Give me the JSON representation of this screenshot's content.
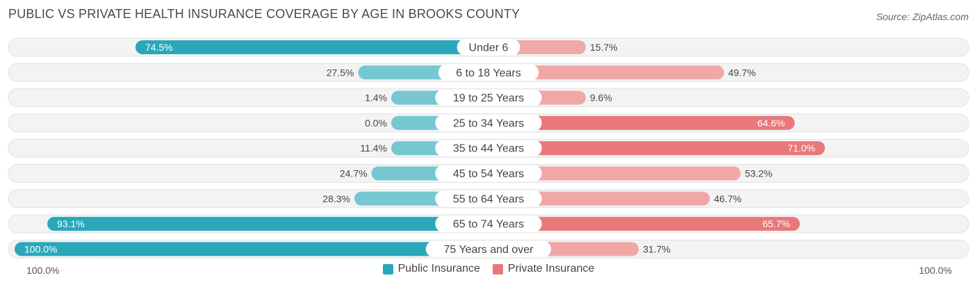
{
  "header": {
    "title": "PUBLIC VS PRIVATE HEALTH INSURANCE COVERAGE BY AGE IN BROOKS COUNTY",
    "source": "Source: ZipAtlas.com"
  },
  "axis": {
    "left_label": "100.0%",
    "right_label": "100.0%"
  },
  "colors": {
    "public_dark": "#2aa8ba",
    "public_light": "#76c7d2",
    "private_dark": "#e8787a",
    "private_light": "#f0a8a7",
    "track": "#f1f1f1"
  },
  "legend": {
    "public_label": "Public Insurance",
    "private_label": "Private Insurance"
  },
  "chart_data": {
    "type": "bar",
    "orientation": "horizontal-diverging",
    "title": "PUBLIC VS PRIVATE HEALTH INSURANCE COVERAGE BY AGE IN BROOKS COUNTY",
    "categories": [
      "Under 6",
      "6 to 18 Years",
      "19 to 25 Years",
      "25 to 34 Years",
      "35 to 44 Years",
      "45 to 54 Years",
      "55 to 64 Years",
      "65 to 74 Years",
      "75 Years and over"
    ],
    "series": [
      {
        "name": "Public Insurance",
        "values": [
          74.5,
          27.5,
          1.4,
          0.0,
          11.4,
          24.7,
          28.3,
          93.1,
          100.0
        ],
        "labels": [
          "74.5%",
          "27.5%",
          "1.4%",
          "0.0%",
          "11.4%",
          "24.7%",
          "28.3%",
          "93.1%",
          "100.0%"
        ]
      },
      {
        "name": "Private Insurance",
        "values": [
          15.7,
          49.7,
          9.6,
          64.6,
          71.0,
          53.2,
          46.7,
          65.7,
          31.7
        ],
        "labels": [
          "15.7%",
          "49.7%",
          "9.6%",
          "64.6%",
          "71.0%",
          "53.2%",
          "46.7%",
          "65.7%",
          "31.7%"
        ]
      }
    ],
    "xlim": [
      -100,
      100
    ],
    "legend_position": "bottom-center"
  }
}
